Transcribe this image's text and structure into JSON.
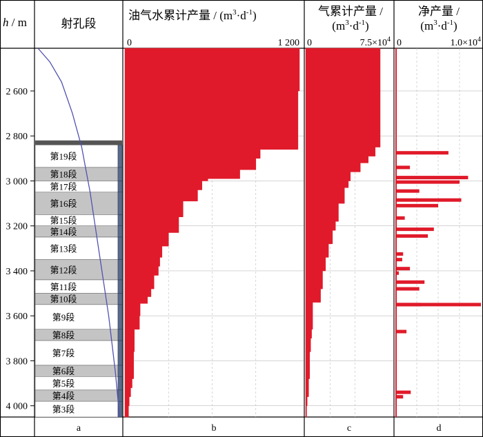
{
  "chart_data": {
    "type": "well-log",
    "depth_axis": {
      "label_var": "h",
      "label_unit": "m",
      "range": [
        2410,
        4050
      ],
      "ticks": [
        2600,
        2800,
        3000,
        3200,
        3400,
        3600,
        3800,
        4000
      ],
      "tick_labels": [
        "2 600",
        "2 800",
        "3 000",
        "3 200",
        "3 400",
        "3 600",
        "3 800",
        "4 000"
      ]
    },
    "columns": {
      "a": {
        "header": "射孔段",
        "letter": "a"
      },
      "b": {
        "header_text": "油气水累计产量 / (m",
        "header_unit_tail": "·d",
        "letter": "b",
        "axis_min_label": "0",
        "axis_max_label": "1 200",
        "xlim": [
          0,
          1200
        ]
      },
      "c": {
        "header_line1": "气累计产量 /",
        "header_line2_text": "(m",
        "header_line2_tail": "·d",
        "letter": "c",
        "axis_min_label": "0",
        "axis_max_label_mant": "7.5×10",
        "axis_max_label_exp": "4",
        "xlim": [
          0,
          75000
        ]
      },
      "d": {
        "header_line1": "净产量 /",
        "header_line2_text": "(m",
        "header_line2_tail": "·d",
        "letter": "d",
        "axis_min_label": "0",
        "axis_max_label_mant": "1.0×10",
        "axis_max_label_exp": "4",
        "xlim": [
          0,
          10000
        ]
      }
    },
    "segments": [
      {
        "label": "第19段",
        "top": 2840,
        "bottom": 2940
      },
      {
        "label": "第18段",
        "top": 2940,
        "bottom": 3000
      },
      {
        "label": "第17段",
        "top": 3000,
        "bottom": 3050
      },
      {
        "label": "第16段",
        "top": 3050,
        "bottom": 3150
      },
      {
        "label": "第15段",
        "top": 3150,
        "bottom": 3200
      },
      {
        "label": "第14段",
        "top": 3200,
        "bottom": 3250
      },
      {
        "label": "第13段",
        "top": 3250,
        "bottom": 3350
      },
      {
        "label": "第12段",
        "top": 3350,
        "bottom": 3440
      },
      {
        "label": "第11段",
        "top": 3440,
        "bottom": 3500
      },
      {
        "label": "第10段",
        "top": 3500,
        "bottom": 3550
      },
      {
        "label": "第9段",
        "top": 3550,
        "bottom": 3660
      },
      {
        "label": "第8段",
        "top": 3660,
        "bottom": 3710
      },
      {
        "label": "第7段",
        "top": 3710,
        "bottom": 3820
      },
      {
        "label": "第6段",
        "top": 3820,
        "bottom": 3870
      },
      {
        "label": "第5段",
        "top": 3870,
        "bottom": 3930
      },
      {
        "label": "第4段",
        "top": 3930,
        "bottom": 3980
      },
      {
        "label": "第3段",
        "top": 3980,
        "bottom": 4050
      }
    ],
    "segment_fill_gray": [
      "第18段",
      "第16段",
      "第14段",
      "第12段",
      "第10段",
      "第8段",
      "第6段",
      "第4段"
    ],
    "trajectory": [
      {
        "depth": 2410,
        "frac": 0.0
      },
      {
        "depth": 2470,
        "frac": 0.14
      },
      {
        "depth": 2560,
        "frac": 0.28
      },
      {
        "depth": 2700,
        "frac": 0.41
      },
      {
        "depth": 2850,
        "frac": 0.52
      },
      {
        "depth": 3050,
        "frac": 0.62
      },
      {
        "depth": 3300,
        "frac": 0.72
      },
      {
        "depth": 3600,
        "frac": 0.84
      },
      {
        "depth": 3850,
        "frac": 0.92
      },
      {
        "depth": 4050,
        "frac": 0.97
      }
    ],
    "series_b_cumulative": [
      {
        "top": 2410,
        "value": 1200
      },
      {
        "top": 2600,
        "value": 1190
      },
      {
        "top": 2860,
        "value": 930
      },
      {
        "top": 2900,
        "value": 900
      },
      {
        "top": 2950,
        "value": 790
      },
      {
        "top": 2990,
        "value": 570
      },
      {
        "top": 3000,
        "value": 530
      },
      {
        "top": 3040,
        "value": 500
      },
      {
        "top": 3090,
        "value": 400
      },
      {
        "top": 3160,
        "value": 370
      },
      {
        "top": 3230,
        "value": 300
      },
      {
        "top": 3290,
        "value": 255
      },
      {
        "top": 3340,
        "value": 240
      },
      {
        "top": 3380,
        "value": 230
      },
      {
        "top": 3420,
        "value": 200
      },
      {
        "top": 3480,
        "value": 180
      },
      {
        "top": 3515,
        "value": 155
      },
      {
        "top": 3545,
        "value": 105
      },
      {
        "top": 3600,
        "value": 100
      },
      {
        "top": 3660,
        "value": 65
      },
      {
        "top": 3760,
        "value": 60
      },
      {
        "top": 3880,
        "value": 50
      },
      {
        "top": 3920,
        "value": 40
      },
      {
        "top": 3960,
        "value": 30
      },
      {
        "top": 4000,
        "value": 25
      },
      {
        "top": 4050,
        "value": 25
      }
    ],
    "series_c_cumulative": [
      {
        "top": 2410,
        "value": 75000
      },
      {
        "top": 2850,
        "value": 70000
      },
      {
        "top": 2890,
        "value": 63000
      },
      {
        "top": 2920,
        "value": 55000
      },
      {
        "top": 2960,
        "value": 45000
      },
      {
        "top": 3000,
        "value": 43000
      },
      {
        "top": 3030,
        "value": 39000
      },
      {
        "top": 3100,
        "value": 33000
      },
      {
        "top": 3180,
        "value": 30000
      },
      {
        "top": 3220,
        "value": 27000
      },
      {
        "top": 3280,
        "value": 23000
      },
      {
        "top": 3340,
        "value": 20000
      },
      {
        "top": 3400,
        "value": 17000
      },
      {
        "top": 3480,
        "value": 15000
      },
      {
        "top": 3540,
        "value": 7000
      },
      {
        "top": 3660,
        "value": 6000
      },
      {
        "top": 3700,
        "value": 5000
      },
      {
        "top": 3760,
        "value": 4000
      },
      {
        "top": 3880,
        "value": 3000
      },
      {
        "top": 3960,
        "value": 1500
      },
      {
        "top": 4000,
        "value": 1000
      },
      {
        "top": 4050,
        "value": 1000
      }
    ],
    "series_d_net": [
      {
        "depth": 2875,
        "value": 6200
      },
      {
        "depth": 2940,
        "value": 1700
      },
      {
        "depth": 2985,
        "value": 8500
      },
      {
        "depth": 3005,
        "value": 7500
      },
      {
        "depth": 3045,
        "value": 2800
      },
      {
        "depth": 3085,
        "value": 7700
      },
      {
        "depth": 3110,
        "value": 5000
      },
      {
        "depth": 3165,
        "value": 1100
      },
      {
        "depth": 3215,
        "value": 4500
      },
      {
        "depth": 3245,
        "value": 3800
      },
      {
        "depth": 3325,
        "value": 900
      },
      {
        "depth": 3350,
        "value": 800
      },
      {
        "depth": 3390,
        "value": 1700
      },
      {
        "depth": 3410,
        "value": 400
      },
      {
        "depth": 3450,
        "value": 3400
      },
      {
        "depth": 3480,
        "value": 2800
      },
      {
        "depth": 3550,
        "value": 10000
      },
      {
        "depth": 3550,
        "value": 3000
      },
      {
        "depth": 3670,
        "value": 1300
      },
      {
        "depth": 3940,
        "value": 1800
      },
      {
        "depth": 3960,
        "value": 900
      }
    ]
  },
  "colors": {
    "fill": "#e01a2a",
    "segment_gray": "#c4c4c4",
    "trajectory": "#5050b0",
    "grid": "#bbbbbb"
  }
}
